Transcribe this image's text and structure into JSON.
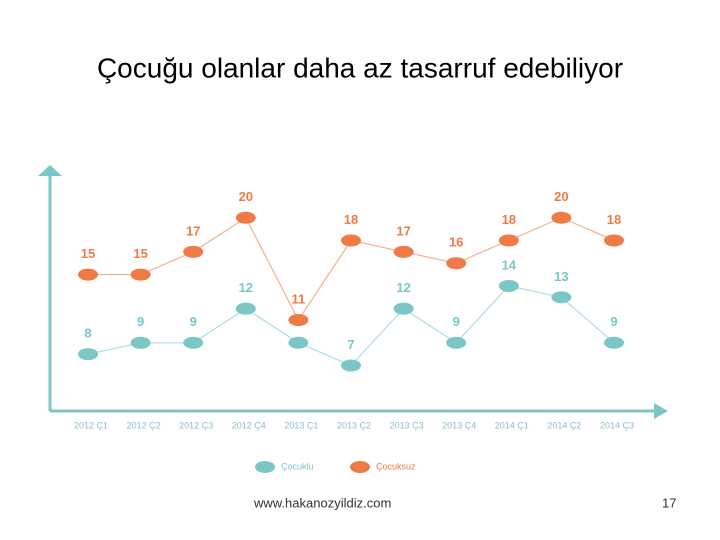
{
  "chart_data": {
    "type": "line",
    "title": "Çocuğu olanlar daha az tasarruf edebiliyor",
    "categories": [
      "2012 Ç1",
      "2012 Ç2",
      "2012 Ç3",
      "2012 Ç4",
      "2013 Ç1",
      "2013 Ç2",
      "2013 Ç3",
      "2013 Ç4",
      "2014 Ç1",
      "2014 Ç2",
      "2014 Ç3"
    ],
    "series": [
      {
        "name": "Çocuklu",
        "color": "#7cc6c6",
        "values": [
          8,
          9,
          9,
          12,
          9,
          7,
          12,
          9,
          14,
          13,
          9
        ]
      },
      {
        "name": "Çocuksuz",
        "color": "#f07a45",
        "values": [
          15,
          15,
          17,
          20,
          11,
          18,
          17,
          16,
          18,
          20,
          18
        ]
      }
    ],
    "ylim": [
      3,
      22
    ],
    "legend": "bottom"
  },
  "footer": {
    "source": "www.hakanozyildiz.com",
    "page": "17"
  }
}
